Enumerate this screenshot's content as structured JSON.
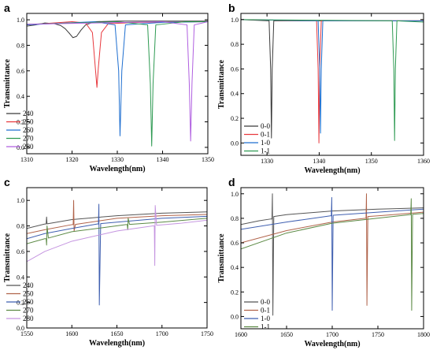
{
  "figure": {
    "colors": {
      "black": "#3a3a3a",
      "red": "#e8383d",
      "blue": "#1f6fd0",
      "green": "#2e9a52",
      "violet": "#b05fe0",
      "gray": "#555555",
      "brown": "#b0634a",
      "indigo": "#3f5fb0",
      "sage": "#5c8a45",
      "lilac": "#c595e0"
    }
  },
  "chart_data": [
    {
      "panel": "a",
      "type": "line",
      "xlabel": "Wavelength(nm)",
      "ylabel": "Transmittance",
      "xlim": [
        1310,
        1350
      ],
      "ylim": [
        -0.05,
        1.05
      ],
      "xticks": [
        1310,
        1320,
        1330,
        1340,
        1350
      ],
      "xtick_labels": [
        "1310",
        "1320",
        "1330",
        "1340",
        "1350"
      ],
      "yticks": [
        0,
        0.2,
        0.4,
        0.6,
        0.8,
        1.0
      ],
      "ytick_labels": [
        "0.0",
        "0.2",
        "0.4",
        "0.6",
        "0.8",
        "1.0"
      ],
      "legend_position": "bottom-left",
      "series": [
        {
          "name": "240",
          "color": "black",
          "x": [
            1310,
            1312,
            1314,
            1316,
            1317.5,
            1318.5,
            1319.5,
            1320.2,
            1321,
            1322,
            1323,
            1325,
            1330,
            1340,
            1350
          ],
          "y": [
            0.95,
            0.96,
            0.975,
            0.97,
            0.955,
            0.93,
            0.89,
            0.86,
            0.87,
            0.92,
            0.96,
            0.985,
            0.99,
            0.99,
            0.99
          ]
        },
        {
          "name": "250",
          "color": "red",
          "x": [
            1310,
            1320,
            1323,
            1324.5,
            1325.2,
            1325.5,
            1325.8,
            1326.5,
            1328,
            1335,
            1350
          ],
          "y": [
            0.96,
            0.985,
            0.975,
            0.9,
            0.6,
            0.47,
            0.62,
            0.9,
            0.97,
            0.98,
            0.985
          ]
        },
        {
          "name": "260",
          "color": "blue",
          "x": [
            1310,
            1325,
            1329.5,
            1330.3,
            1330.6,
            1331.0,
            1331.8,
            1340,
            1350
          ],
          "y": [
            0.96,
            0.985,
            0.96,
            0.6,
            0.09,
            0.6,
            0.96,
            0.98,
            0.985
          ]
        },
        {
          "name": "270",
          "color": "green",
          "x": [
            1310,
            1330,
            1336.7,
            1337.3,
            1337.6,
            1337.9,
            1338.5,
            1345,
            1350
          ],
          "y": [
            0.965,
            0.985,
            0.96,
            0.5,
            0.01,
            0.5,
            0.96,
            0.985,
            0.985
          ]
        },
        {
          "name": "280",
          "color": "violet",
          "x": [
            1310,
            1340,
            1345.4,
            1345.9,
            1346.2,
            1346.5,
            1347,
            1350
          ],
          "y": [
            0.965,
            0.985,
            0.96,
            0.5,
            0.05,
            0.5,
            0.96,
            0.985
          ]
        }
      ]
    },
    {
      "panel": "b",
      "type": "line",
      "xlabel": "Wavelength(nm)",
      "ylabel": "Transmittance",
      "xlim": [
        1325,
        1360
      ],
      "ylim": [
        -0.1,
        1.05
      ],
      "xticks": [
        1330,
        1340,
        1350,
        1360
      ],
      "xtick_labels": [
        "1330",
        "1340",
        "1350",
        "1360"
      ],
      "yticks": [
        0,
        0.2,
        0.4,
        0.6,
        0.8,
        1.0
      ],
      "ytick_labels": [
        "0.0",
        "0.2",
        "0.4",
        "0.6",
        "0.8",
        "1.0"
      ],
      "legend_position": "bottom-left",
      "series": [
        {
          "name": "0-0",
          "color": "black",
          "x": [
            1325,
            1330.4,
            1330.7,
            1330.85,
            1331.0,
            1331.3,
            1345,
            1360
          ],
          "y": [
            1.0,
            0.99,
            0.6,
            0.04,
            0.6,
            0.99,
            0.99,
            0.99
          ]
        },
        {
          "name": "0-1",
          "color": "red",
          "x": [
            1325,
            1339.5,
            1339.8,
            1339.95,
            1340.1,
            1340.4,
            1360
          ],
          "y": [
            1.0,
            0.99,
            0.6,
            0.0,
            0.6,
            0.99,
            0.99
          ]
        },
        {
          "name": "1-0",
          "color": "blue",
          "x": [
            1325,
            1339.8,
            1340.1,
            1340.25,
            1340.4,
            1340.7,
            1360
          ],
          "y": [
            1.0,
            0.99,
            0.6,
            0.08,
            0.6,
            0.99,
            0.99
          ]
        },
        {
          "name": "1-1",
          "color": "green",
          "x": [
            1325,
            1354.0,
            1354.3,
            1354.45,
            1354.6,
            1354.9,
            1360
          ],
          "y": [
            1.0,
            0.99,
            0.6,
            0.02,
            0.6,
            0.99,
            0.98
          ]
        }
      ]
    },
    {
      "panel": "c",
      "type": "line",
      "xlabel": "Wavelength(nm)",
      "ylabel": "Transmittance",
      "xlim": [
        1550,
        1750
      ],
      "ylim": [
        0,
        1.1
      ],
      "xticks": [
        1550,
        1600,
        1650,
        1700,
        1750
      ],
      "xtick_labels": [
        "1550",
        "1600",
        "1650",
        "1700",
        "1750"
      ],
      "yticks": [
        0,
        0.2,
        0.4,
        0.6,
        0.8,
        1.0
      ],
      "ytick_labels": [
        "0.0",
        "0.2",
        "0.4",
        "0.6",
        "0.8",
        "1.0"
      ],
      "legend_position": "bottom-left",
      "series": [
        {
          "name": "240",
          "color": "gray",
          "x": [
            1550,
            1570,
            1571.5,
            1572,
            1572.5,
            1574,
            1600,
            1650,
            1700,
            1750
          ],
          "y": [
            0.78,
            0.815,
            0.816,
            0.87,
            0.816,
            0.818,
            0.85,
            0.88,
            0.9,
            0.91
          ]
        },
        {
          "name": "250",
          "color": "brown",
          "x": [
            1550,
            1570,
            1600,
            1601.5,
            1602,
            1602.5,
            1604,
            1650,
            1700,
            1750
          ],
          "y": [
            0.74,
            0.77,
            0.81,
            0.81,
            1.0,
            0.76,
            0.812,
            0.86,
            0.88,
            0.89
          ]
        },
        {
          "name": "260",
          "color": "indigo",
          "x": [
            1550,
            1570,
            1600,
            1628,
            1629.5,
            1630,
            1630.5,
            1632,
            1650,
            1700,
            1750
          ],
          "y": [
            0.7,
            0.74,
            0.78,
            0.815,
            0.815,
            0.97,
            0.18,
            0.818,
            0.83,
            0.86,
            0.875
          ]
        },
        {
          "name": "270",
          "color": "sage",
          "x": [
            1550,
            1570,
            1571.5,
            1572,
            1572.5,
            1574,
            1600,
            1660,
            1661.5,
            1662,
            1662.5,
            1664,
            1700,
            1750
          ],
          "y": [
            0.66,
            0.7,
            0.7,
            0.65,
            0.8,
            0.705,
            0.755,
            0.81,
            0.81,
            0.77,
            0.86,
            0.812,
            0.83,
            0.86
          ]
        },
        {
          "name": "280",
          "color": "lilac",
          "x": [
            1550,
            1570,
            1600,
            1650,
            1690,
            1691.5,
            1692,
            1692.5,
            1694,
            1720,
            1750
          ],
          "y": [
            0.52,
            0.6,
            0.68,
            0.76,
            0.8,
            0.8,
            0.49,
            0.96,
            0.805,
            0.82,
            0.845
          ]
        }
      ]
    },
    {
      "panel": "d",
      "type": "line",
      "xlabel": "Wavelength(nm)",
      "ylabel": "Transmittance",
      "xlim": [
        1600,
        1800
      ],
      "ylim": [
        -0.1,
        1.05
      ],
      "xticks": [
        1600,
        1650,
        1700,
        1750,
        1800
      ],
      "xtick_labels": [
        "1600",
        "1650",
        "1700",
        "1750",
        "1800"
      ],
      "yticks": [
        0,
        0.2,
        0.4,
        0.6,
        0.8,
        1.0
      ],
      "ytick_labels": [
        "0.0",
        "0.2",
        "0.4",
        "0.6",
        "0.8",
        "1.0"
      ],
      "legend_position": "bottom-left",
      "series": [
        {
          "name": "0-0",
          "color": "gray",
          "x": [
            1600,
            1620,
            1633,
            1634,
            1634.5,
            1635,
            1636,
            1650,
            1700,
            1750,
            1800
          ],
          "y": [
            0.75,
            0.78,
            0.795,
            0.795,
            1.0,
            0.01,
            0.815,
            0.83,
            0.86,
            0.875,
            0.885
          ]
        },
        {
          "name": "0-1",
          "color": "brown",
          "x": [
            1600,
            1650,
            1700,
            1736,
            1737,
            1737.5,
            1738,
            1739,
            1750,
            1800
          ],
          "y": [
            0.6,
            0.7,
            0.77,
            0.8,
            0.8,
            1.0,
            0.09,
            0.815,
            0.82,
            0.85
          ]
        },
        {
          "name": "1-0",
          "color": "indigo",
          "x": [
            1600,
            1650,
            1698,
            1699,
            1699.5,
            1700,
            1701,
            1750,
            1800
          ],
          "y": [
            0.71,
            0.77,
            0.82,
            0.82,
            0.97,
            0.05,
            0.825,
            0.85,
            0.875
          ]
        },
        {
          "name": "1-1",
          "color": "sage",
          "x": [
            1600,
            1650,
            1700,
            1785,
            1786,
            1786.5,
            1787,
            1788,
            1800
          ],
          "y": [
            0.55,
            0.68,
            0.76,
            0.83,
            0.83,
            0.96,
            0.05,
            0.833,
            0.84
          ]
        }
      ]
    }
  ]
}
